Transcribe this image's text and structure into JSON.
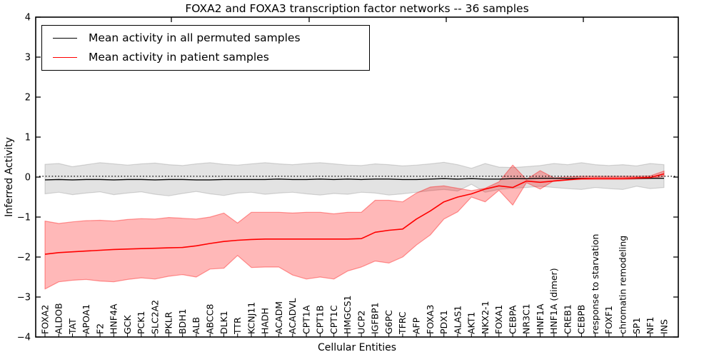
{
  "figure": {
    "title": "FOXA2 and FOXA3 transcription factor networks -- 36 samples"
  },
  "chart_data": {
    "type": "line",
    "title": "FOXA2 and FOXA3 transcription factor networks -- 36 samples",
    "xlabel": "Cellular Entities",
    "ylabel": "Inferred Activity",
    "ylim": [
      -4,
      4
    ],
    "yticks": [
      -4,
      -3,
      -2,
      -1,
      0,
      1,
      2,
      3,
      4
    ],
    "ytick_labels": [
      "−4",
      "−3",
      "−2",
      "−1",
      "0",
      "1",
      "2",
      "3",
      "4"
    ],
    "grid": false,
    "legend_position": "upper left",
    "reference_line": {
      "y": 0.02,
      "style": "dotted",
      "color": "#000000"
    },
    "categories": [
      "FOXA2",
      "ALDOB",
      "TAT",
      "APOA1",
      "F2",
      "HNF4A",
      "GCK",
      "PCK1",
      "SLC2A2",
      "PKLR",
      "BDH1",
      "ALB",
      "ABCC8",
      "DLK1",
      "TTR",
      "KCNJ11",
      "HADH",
      "ACADM",
      "ACADVL",
      "CPT1A",
      "CPT1B",
      "CPT1C",
      "HMGCS1",
      "UCP2",
      "IGFBP1",
      "G6PC",
      "TFRC",
      "AFP",
      "FOXA3",
      "PDX1",
      "ALAS1",
      "AKT1",
      "NKX2-1",
      "FOXA1",
      "CEBPA",
      "NR3C1",
      "HNF1A",
      "HNF1A (dimer)",
      "CREB1",
      "CEBPB",
      "response to starvation",
      "FOXF1",
      "chromatin remodeling",
      "SP1",
      "NF1",
      "INS"
    ],
    "series": [
      {
        "name": "Mean activity in all permuted samples",
        "color": "#000000",
        "line_width": 1.4,
        "band_fill": "rgba(0,0,0,0.11)",
        "band_edge": "rgba(0,0,0,0.14)",
        "values": [
          -0.07,
          -0.06,
          -0.07,
          -0.06,
          -0.06,
          -0.07,
          -0.06,
          -0.06,
          -0.07,
          -0.06,
          -0.06,
          -0.07,
          -0.07,
          -0.06,
          -0.06,
          -0.06,
          -0.06,
          -0.05,
          -0.06,
          -0.06,
          -0.05,
          -0.06,
          -0.05,
          -0.06,
          -0.05,
          -0.05,
          -0.06,
          -0.06,
          -0.05,
          -0.04,
          -0.05,
          -0.04,
          -0.05,
          -0.05,
          -0.04,
          -0.04,
          -0.03,
          -0.03,
          -0.04,
          -0.03,
          -0.03,
          -0.03,
          -0.03,
          -0.03,
          -0.03,
          -0.03
        ],
        "band_upper": [
          0.32,
          0.34,
          0.26,
          0.31,
          0.36,
          0.33,
          0.3,
          0.33,
          0.35,
          0.31,
          0.29,
          0.33,
          0.36,
          0.32,
          0.3,
          0.33,
          0.36,
          0.33,
          0.31,
          0.34,
          0.36,
          0.33,
          0.3,
          0.29,
          0.33,
          0.31,
          0.28,
          0.3,
          0.33,
          0.37,
          0.31,
          0.22,
          0.34,
          0.25,
          0.24,
          0.26,
          0.29,
          0.34,
          0.31,
          0.36,
          0.31,
          0.29,
          0.31,
          0.28,
          0.34,
          0.31
        ],
        "band_lower": [
          -0.42,
          -0.38,
          -0.44,
          -0.4,
          -0.37,
          -0.44,
          -0.4,
          -0.37,
          -0.43,
          -0.47,
          -0.41,
          -0.36,
          -0.42,
          -0.46,
          -0.4,
          -0.38,
          -0.43,
          -0.4,
          -0.38,
          -0.42,
          -0.45,
          -0.41,
          -0.43,
          -0.38,
          -0.4,
          -0.45,
          -0.42,
          -0.38,
          -0.34,
          -0.31,
          -0.35,
          -0.18,
          -0.38,
          -0.31,
          -0.28,
          -0.26,
          -0.23,
          -0.26,
          -0.29,
          -0.31,
          -0.26,
          -0.29,
          -0.31,
          -0.23,
          -0.29,
          -0.26
        ]
      },
      {
        "name": "Mean activity in patient samples",
        "color": "#ff0000",
        "line_width": 1.6,
        "band_fill": "rgba(255,0,0,0.28)",
        "band_edge": "rgba(255,0,0,0.38)",
        "values": [
          -1.93,
          -1.89,
          -1.87,
          -1.85,
          -1.83,
          -1.81,
          -1.8,
          -1.79,
          -1.78,
          -1.77,
          -1.76,
          -1.72,
          -1.66,
          -1.61,
          -1.58,
          -1.56,
          -1.55,
          -1.55,
          -1.55,
          -1.55,
          -1.55,
          -1.55,
          -1.55,
          -1.54,
          -1.38,
          -1.33,
          -1.3,
          -1.05,
          -0.85,
          -0.62,
          -0.5,
          -0.42,
          -0.3,
          -0.22,
          -0.26,
          -0.1,
          -0.13,
          -0.1,
          -0.07,
          -0.04,
          -0.03,
          -0.03,
          -0.03,
          -0.02,
          -0.01,
          0.08
        ],
        "band_upper": [
          -1.1,
          -1.16,
          -1.12,
          -1.09,
          -1.08,
          -1.1,
          -1.06,
          -1.04,
          -1.05,
          -1.01,
          -1.03,
          -1.05,
          -1.0,
          -0.9,
          -1.15,
          -0.88,
          -0.88,
          -0.88,
          -0.9,
          -0.88,
          -0.88,
          -0.92,
          -0.88,
          -0.88,
          -0.58,
          -0.58,
          -0.62,
          -0.4,
          -0.25,
          -0.22,
          -0.28,
          -0.34,
          -0.28,
          -0.12,
          0.3,
          -0.06,
          0.16,
          -0.02,
          0.0,
          0.02,
          0.02,
          0.02,
          0.02,
          0.02,
          0.03,
          0.15
        ],
        "band_lower": [
          -2.8,
          -2.62,
          -2.58,
          -2.56,
          -2.6,
          -2.62,
          -2.56,
          -2.52,
          -2.55,
          -2.48,
          -2.44,
          -2.5,
          -2.3,
          -2.28,
          -1.96,
          -2.26,
          -2.25,
          -2.25,
          -2.45,
          -2.55,
          -2.5,
          -2.55,
          -2.35,
          -2.25,
          -2.1,
          -2.15,
          -2.0,
          -1.7,
          -1.45,
          -1.05,
          -0.87,
          -0.5,
          -0.62,
          -0.33,
          -0.7,
          -0.14,
          -0.3,
          -0.09,
          -0.07,
          -0.06,
          -0.06,
          -0.06,
          -0.06,
          -0.05,
          -0.04,
          0.02
        ]
      }
    ]
  }
}
